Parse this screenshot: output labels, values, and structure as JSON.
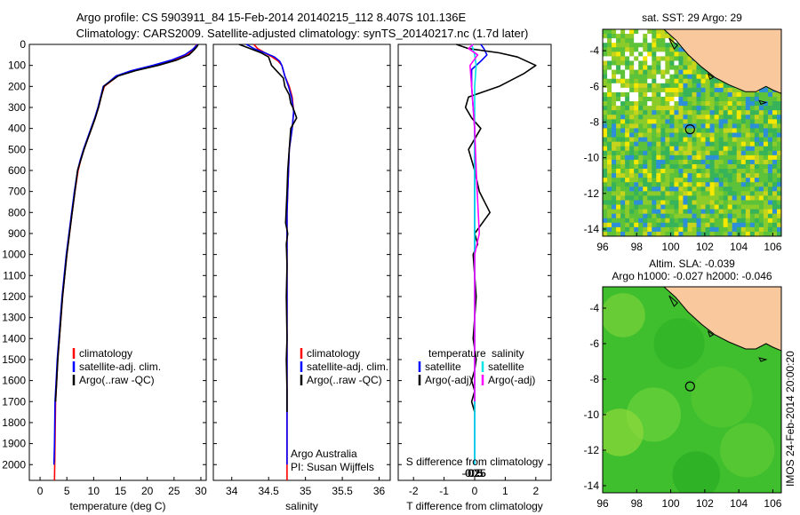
{
  "title": {
    "line1": "Argo profile: CS 5903911_84 15-Feb-2014 20140215_112 8.407S 101.136E",
    "line2": "Climatology: CARS2009. Satellite-adjusted climatology: synTS_20140217.nc (1.7d later)"
  },
  "footer_stamp": "IMOS 24-Feb-2014 20:00:20",
  "colors": {
    "climatology": "#ff0000",
    "satellite": "#0000ff",
    "argo": "#000000",
    "salinity_sat": "#00e5e5",
    "salinity_argo": "#ff00ff",
    "land": "#f9c89c",
    "sst_low": "#0a8f8f",
    "sst_high": "#f5e800",
    "missing": "#ffffff"
  },
  "chart_data": [
    {
      "id": "temperature",
      "type": "line",
      "xlabel": "temperature (deg C)",
      "ylabel": "",
      "xlim": [
        -2,
        31
      ],
      "ylim": [
        2075,
        0
      ],
      "xticks": [
        0,
        5,
        10,
        15,
        20,
        25,
        30
      ],
      "yticks": [
        0,
        100,
        200,
        300,
        400,
        500,
        600,
        700,
        800,
        900,
        1000,
        1100,
        1200,
        1300,
        1400,
        1500,
        1600,
        1700,
        1800,
        1900,
        2000
      ],
      "legend": [
        "climatology",
        "satellite-adj. clim.",
        "Argo(..raw -QC)"
      ],
      "legend_position": "lower-center",
      "series": [
        {
          "name": "climatology",
          "color": "#ff0000",
          "x": [
            29.2,
            29.0,
            28.6,
            27.5,
            25.0,
            21.5,
            17.5,
            14.5,
            13.0,
            12.0,
            11.5,
            10.9,
            10.3,
            9.6,
            8.9,
            8.2,
            7.6,
            7.1,
            6.5,
            6.0,
            5.5,
            5.0,
            4.6,
            4.2,
            3.9,
            3.6,
            3.3,
            3.1,
            2.9,
            2.8,
            2.7
          ],
          "y": [
            0,
            10,
            25,
            50,
            75,
            100,
            125,
            150,
            180,
            200,
            240,
            300,
            350,
            400,
            450,
            500,
            550,
            600,
            700,
            800,
            900,
            1000,
            1100,
            1200,
            1300,
            1400,
            1500,
            1600,
            1700,
            1900,
            2075
          ]
        },
        {
          "name": "satellite-adj. clim.",
          "color": "#0000ff",
          "x": [
            29.4,
            29.0,
            28.4,
            27.0,
            24.5,
            21.0,
            17.0,
            14.2,
            12.8,
            11.8,
            11.4,
            10.8,
            10.2,
            9.5,
            8.8,
            8.1,
            7.5,
            7.0,
            6.4,
            5.9,
            5.4,
            4.9,
            4.5,
            4.1,
            3.8,
            3.5,
            3.2,
            3.0,
            2.8,
            2.7,
            2.6
          ],
          "y": [
            0,
            10,
            25,
            50,
            75,
            100,
            125,
            150,
            180,
            200,
            240,
            300,
            350,
            400,
            450,
            500,
            550,
            600,
            700,
            800,
            900,
            1000,
            1100,
            1200,
            1300,
            1400,
            1500,
            1600,
            1700,
            1900,
            2000
          ]
        },
        {
          "name": "Argo(..raw -QC)",
          "color": "#000000",
          "x": [
            29.5,
            29.3,
            28.8,
            27.8,
            25.5,
            22.0,
            17.8,
            14.6,
            12.9,
            11.9,
            11.5,
            10.9,
            10.3,
            9.6,
            8.9,
            8.2,
            7.6,
            7.0,
            6.5,
            6.0,
            5.5,
            5.0,
            4.6,
            4.2,
            3.9,
            3.6,
            3.3,
            3.1,
            2.9
          ],
          "y": [
            0,
            10,
            25,
            50,
            75,
            100,
            125,
            150,
            180,
            200,
            240,
            300,
            350,
            400,
            450,
            500,
            550,
            600,
            700,
            800,
            900,
            1000,
            1100,
            1200,
            1300,
            1400,
            1500,
            1600,
            1700
          ]
        }
      ]
    },
    {
      "id": "salinity",
      "type": "line",
      "xlabel": "salinity",
      "ylabel": "",
      "xlim": [
        33.75,
        36.15
      ],
      "ylim": [
        2075,
        0
      ],
      "xticks": [
        34,
        34.5,
        35,
        35.5,
        36
      ],
      "legend": [
        "climatology",
        "satellite-adj. clim.",
        "Argo(..raw -QC)"
      ],
      "legend_position": "lower-right",
      "annotation": [
        "Argo Australia",
        "PI: Susan Wijffels"
      ],
      "series": [
        {
          "name": "climatology",
          "color": "#ff0000",
          "x": [
            34.3,
            34.35,
            34.45,
            34.55,
            34.63,
            34.68,
            34.72,
            34.78,
            34.82,
            34.84,
            34.82,
            34.78,
            34.77,
            34.76,
            34.75,
            34.75,
            34.75,
            34.75,
            34.75,
            34.75
          ],
          "y": [
            0,
            20,
            40,
            60,
            80,
            100,
            150,
            200,
            250,
            320,
            400,
            500,
            600,
            700,
            800,
            1000,
            1200,
            1500,
            1800,
            2075
          ]
        },
        {
          "name": "satellite-adj. clim.",
          "color": "#0000ff",
          "x": [
            34.2,
            34.3,
            34.45,
            34.58,
            34.65,
            34.68,
            34.72,
            34.77,
            34.81,
            34.84,
            34.82,
            34.78,
            34.77,
            34.76,
            34.75,
            34.75,
            34.75,
            34.75,
            34.75,
            34.75
          ],
          "y": [
            0,
            20,
            40,
            60,
            80,
            100,
            150,
            200,
            250,
            320,
            400,
            500,
            600,
            700,
            800,
            1000,
            1200,
            1500,
            1800,
            2000
          ]
        },
        {
          "name": "Argo(..raw -QC)",
          "color": "#000000",
          "x": [
            34.1,
            34.25,
            34.4,
            34.5,
            34.52,
            34.54,
            34.62,
            34.7,
            34.72,
            34.78,
            34.8,
            34.83,
            34.88,
            34.8,
            34.78,
            34.76,
            34.75,
            34.73,
            34.76,
            34.74,
            34.75,
            34.74,
            34.75,
            34.74,
            34.75,
            34.75
          ],
          "y": [
            0,
            20,
            40,
            60,
            80,
            100,
            130,
            160,
            200,
            240,
            280,
            300,
            350,
            400,
            500,
            600,
            700,
            850,
            900,
            950,
            1050,
            1200,
            1400,
            1500,
            1650,
            1750
          ]
        }
      ]
    },
    {
      "id": "difference",
      "type": "line",
      "xlabel": "T difference from climatology",
      "xlabel_secondary": "S difference from climatology",
      "xlim": [
        -2.5,
        2.5
      ],
      "ylim": [
        2075,
        0
      ],
      "xticks": [
        -2,
        -1,
        0,
        1,
        2
      ],
      "xticks_salinity": [
        -0.5,
        -0.25,
        0,
        0.25,
        0.5
      ],
      "legend": [
        "temperature",
        "satellite",
        "Argo(-adj)",
        "salinity",
        "satellite",
        "Argo(-adj)"
      ],
      "legend_position": "lower-center",
      "series": [
        {
          "name": "temperature satellite",
          "color": "#0000ff",
          "x": [
            0.2,
            0.3,
            0.4,
            0.2,
            -0.1,
            -0.1,
            -0.05,
            0.0,
            0.0,
            0.0,
            0.0,
            0.0,
            0.0
          ],
          "y": [
            0,
            20,
            50,
            80,
            120,
            200,
            300,
            400,
            600,
            800,
            1200,
            1600,
            2000
          ]
        },
        {
          "name": "temperature Argo(-adj)",
          "color": "#000000",
          "x": [
            -0.6,
            -0.2,
            0.8,
            1.4,
            2.0,
            1.6,
            0.8,
            -0.2,
            -0.3,
            -0.1,
            0.2,
            -0.2,
            0.0,
            0.15,
            0.5,
            0.0,
            0.1,
            -0.05,
            0.05,
            -0.05,
            0.05,
            0.0,
            -0.1,
            0.0,
            -0.1,
            0.0
          ],
          "y": [
            0,
            20,
            40,
            60,
            100,
            140,
            200,
            250,
            300,
            350,
            400,
            500,
            600,
            700,
            800,
            900,
            950,
            1000,
            1200,
            1400,
            1500,
            1550,
            1600,
            1650,
            1700,
            1750
          ]
        },
        {
          "name": "salinity satellite",
          "color": "#00e5e5",
          "x": [
            -0.1,
            0.0,
            0.05,
            0.0,
            0.0,
            0.0,
            0.0,
            0.0,
            0.0,
            0.0,
            0.0
          ],
          "y": [
            0,
            50,
            100,
            200,
            300,
            500,
            800,
            1100,
            1400,
            1700,
            2000
          ]
        },
        {
          "name": "salinity Argo(-adj)",
          "color": "#ff00ff",
          "x": [
            -0.05,
            -0.2,
            0.1,
            -0.15,
            -0.1,
            -0.05,
            0.0,
            0.05,
            0.15,
            0.0,
            0.0,
            0.0
          ],
          "y": [
            0,
            20,
            50,
            100,
            200,
            300,
            400,
            600,
            900,
            1000,
            1400,
            1700
          ]
        }
      ]
    },
    {
      "id": "sst-map",
      "type": "heatmap",
      "title": "sat. SST: 29 Argo: 29",
      "xlim": [
        96,
        106.5
      ],
      "ylim": [
        -14.4,
        -2.8
      ],
      "xticks": [
        96,
        98,
        100,
        102,
        104,
        106
      ],
      "yticks": [
        -4,
        -6,
        -8,
        -10,
        -12,
        -14
      ],
      "marker": {
        "lon": 101.136,
        "lat": -8.407
      }
    },
    {
      "id": "sla-map",
      "type": "heatmap",
      "title": [
        "Altim. SLA: -0.039",
        "Argo h1000: -0.027 h2000: -0.046"
      ],
      "xlim": [
        96,
        106.5
      ],
      "ylim": [
        -14.4,
        -2.8
      ],
      "xticks": [
        96,
        98,
        100,
        102,
        104,
        106
      ],
      "yticks": [
        -4,
        -6,
        -8,
        -10,
        -12,
        -14
      ],
      "marker": {
        "lon": 101.136,
        "lat": -8.407
      }
    }
  ]
}
